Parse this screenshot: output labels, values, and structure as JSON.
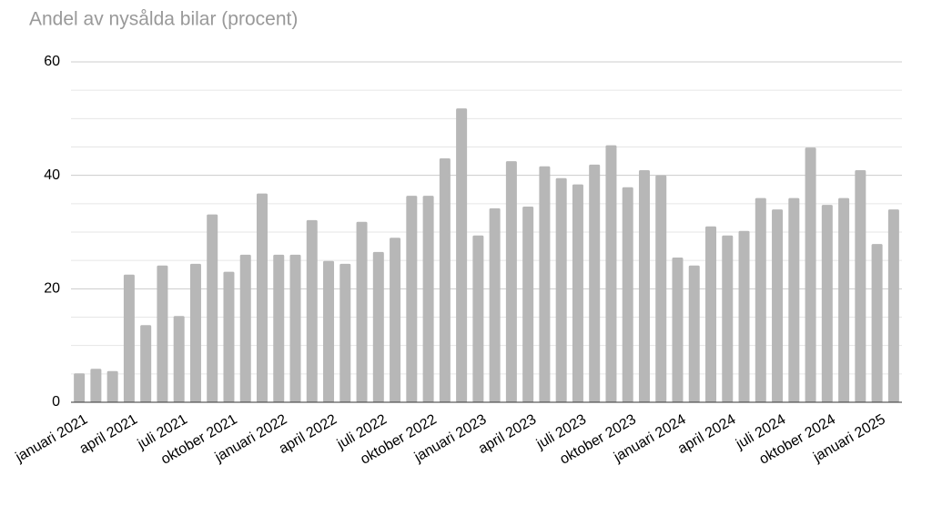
{
  "chart_data": {
    "type": "bar",
    "title": "Andel av nysålda bilar (procent)",
    "categories": [
      "januari 2021",
      null,
      null,
      "april 2021",
      null,
      null,
      "juli 2021",
      null,
      null,
      "oktober 2021",
      null,
      null,
      "januari 2022",
      null,
      null,
      "april 2022",
      null,
      null,
      "juli 2022",
      null,
      null,
      "oktober 2022",
      null,
      null,
      "januari 2023",
      null,
      null,
      "april 2023",
      null,
      null,
      "juli 2023",
      null,
      null,
      "oktober 2023",
      null,
      null,
      "januari 2024",
      null,
      null,
      "april 2024",
      null,
      null,
      "juli 2024",
      null,
      null,
      "oktober 2024",
      null,
      null,
      "januari 2025",
      null
    ],
    "values": [
      5.1,
      5.9,
      5.5,
      22.5,
      13.6,
      24.1,
      15.2,
      24.4,
      33.1,
      23,
      26,
      36.8,
      26,
      26,
      32.1,
      24.9,
      24.4,
      31.8,
      26.5,
      29,
      36.4,
      36.4,
      43,
      51.8,
      29.4,
      34.2,
      42.5,
      34.5,
      41.6,
      39.5,
      38.4,
      41.9,
      45.3,
      37.9,
      40.9,
      40,
      25.5,
      24.1,
      31,
      29.4,
      30.2,
      36,
      34,
      36,
      44.9,
      34.8,
      36,
      40.9,
      27.9,
      34
    ],
    "color": "#b7b7b7",
    "ylim": [
      0,
      60
    ],
    "yticks": [
      0,
      20,
      40,
      60
    ],
    "grid": true
  }
}
